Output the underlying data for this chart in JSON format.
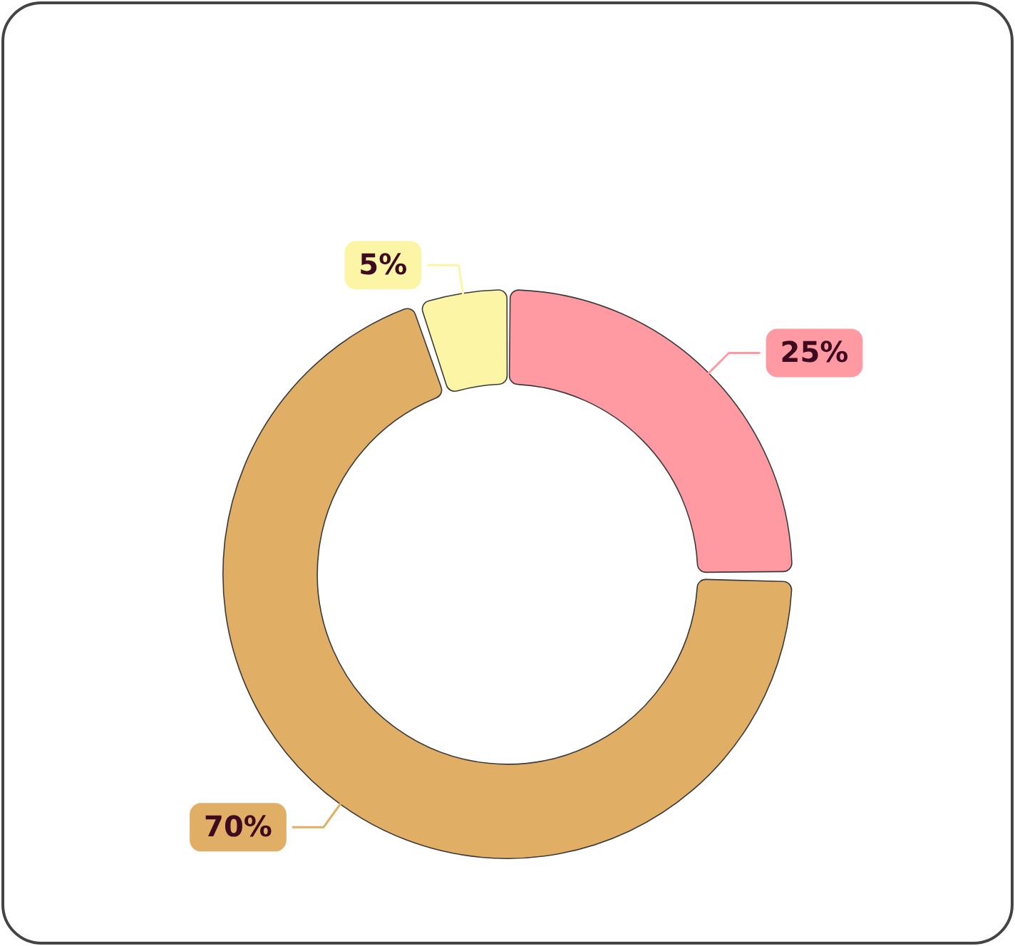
{
  "chart_data": {
    "type": "donut",
    "categories": [
      null,
      null,
      null
    ],
    "values": [
      25,
      70,
      5
    ],
    "colors": [
      "#ff9aa2",
      "#e0ae65",
      "#fdf5a6"
    ],
    "value_labels": [
      "25%",
      "70%",
      "5%"
    ]
  }
}
